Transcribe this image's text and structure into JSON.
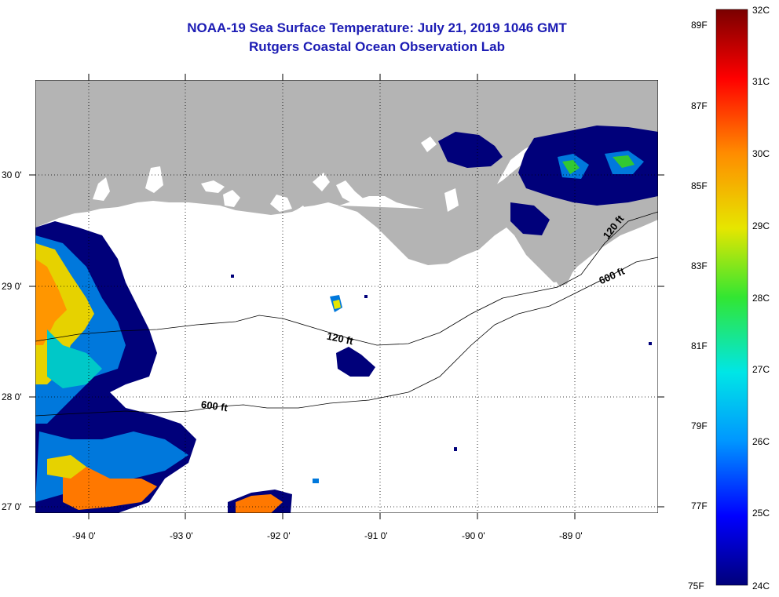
{
  "title": {
    "line1": "NOAA-19 Sea Surface Temperature:  July 21, 2019 1046 GMT",
    "line2": "Rutgers Coastal Ocean Observation Lab"
  },
  "map": {
    "land_color": "#b4b4b4",
    "water_color": "#ffffff",
    "grid": "dotted",
    "y_ticks": [
      "30 0'",
      "29 0'",
      "28 0'",
      "27 0'"
    ],
    "x_ticks": [
      "-94 0'",
      "-93 0'",
      "-92 0'",
      "-91 0'",
      "-90 0'",
      "-89 0'"
    ],
    "contours": {
      "c120_left": "120 ft",
      "c120_right": "120 ft",
      "c600_left": "600 ft",
      "c600_right": "600 ft"
    }
  },
  "colorbar": {
    "celsius": [
      "32C",
      "31C",
      "30C",
      "29C",
      "28C",
      "27C",
      "26C",
      "25C",
      "24C"
    ],
    "fahrenheit": [
      "89F",
      "87F",
      "85F",
      "83F",
      "81F",
      "79F",
      "77F",
      "75F"
    ],
    "colors": [
      "#00007a",
      "#0000ff",
      "#0096ff",
      "#00e6e6",
      "#32e632",
      "#e6e600",
      "#ff8c00",
      "#ff0000",
      "#7a0000"
    ]
  }
}
